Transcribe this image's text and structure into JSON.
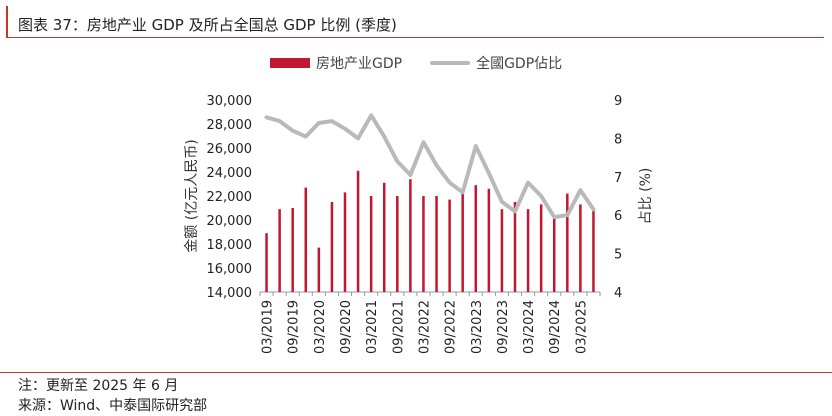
{
  "header": {
    "title": "图表 37：房地产业 GDP 及所占全国总 GDP 比例 (季度)"
  },
  "legend": {
    "bar_label": "房地产业GDP",
    "line_label": "全國GDP佔比"
  },
  "footer": {
    "note": "注：更新至 2025 年 6 月",
    "source": "来源：Wind、中泰国际研究部"
  },
  "colors": {
    "bar": "#c0182f",
    "line": "#b9b9b9",
    "accent": "#c0392b"
  },
  "chart_data": {
    "type": "bar",
    "title": "",
    "x_tick_labels": [
      "03/2019",
      "09/2019",
      "03/2020",
      "09/2020",
      "03/2021",
      "09/2021",
      "03/2022",
      "09/2022",
      "03/2023",
      "09/2023",
      "03/2024",
      "09/2024",
      "03/2025"
    ],
    "categories": [
      "03/2019",
      "06/2019",
      "09/2019",
      "12/2019",
      "03/2020",
      "06/2020",
      "09/2020",
      "12/2020",
      "03/2021",
      "06/2021",
      "09/2021",
      "12/2021",
      "03/2022",
      "06/2022",
      "09/2022",
      "12/2022",
      "03/2023",
      "06/2023",
      "09/2023",
      "12/2023",
      "03/2024",
      "06/2024",
      "09/2024",
      "12/2024",
      "03/2025",
      "06/2025"
    ],
    "series": [
      {
        "name": "房地产业GDP",
        "axis": "left",
        "type": "bar",
        "values": [
          18900,
          20900,
          21000,
          22700,
          17700,
          21500,
          22300,
          24100,
          22000,
          23100,
          22000,
          23400,
          22000,
          22000,
          21700,
          22300,
          22900,
          22600,
          20900,
          21500,
          20900,
          21300,
          20300,
          22200,
          21300,
          20900
        ]
      },
      {
        "name": "全國GDP佔比",
        "axis": "right",
        "type": "line",
        "values": [
          8.55,
          8.45,
          8.2,
          8.05,
          8.4,
          8.45,
          8.25,
          8.0,
          8.6,
          8.05,
          7.4,
          7.05,
          7.9,
          7.3,
          6.85,
          6.6,
          7.8,
          7.1,
          6.35,
          6.1,
          6.85,
          6.5,
          5.95,
          6.0,
          6.65,
          6.15
        ]
      }
    ],
    "ylabel": "金额 (亿元人民币)",
    "y2label": "占比 (%)",
    "ylim": [
      14000,
      30000
    ],
    "y_ticks": [
      "14,000",
      "16,000",
      "18,000",
      "20,000",
      "22,000",
      "24,000",
      "26,000",
      "28,000",
      "30,000"
    ],
    "y2lim": [
      4,
      9
    ],
    "y2_ticks": [
      "4",
      "5",
      "6",
      "7",
      "8",
      "9"
    ],
    "legend_position": "top",
    "grid": false
  }
}
